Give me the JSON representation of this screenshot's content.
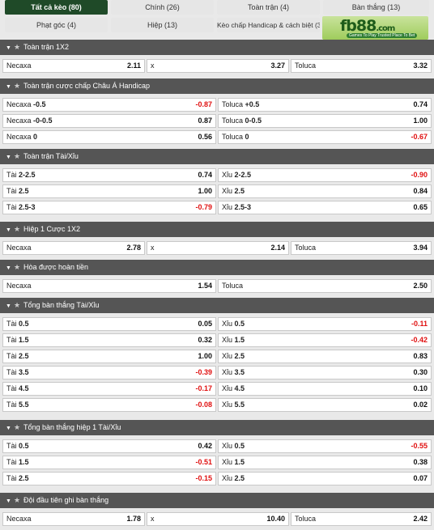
{
  "tabs": [
    {
      "label": "Tất cả kèo (80)",
      "active": true
    },
    {
      "label": "Chính (26)"
    },
    {
      "label": "Toàn trận (4)"
    },
    {
      "label": "Bàn thắng (13)"
    },
    {
      "label": "Phạt góc (4)"
    },
    {
      "label": "Hiệp (13)"
    },
    {
      "label": "Kèo chấp Handicap & cách biệt (3)"
    }
  ],
  "logo": {
    "brand": "fb88",
    "domain": ".com",
    "tagline": "Games To Play Trusted Place To Bet",
    "icon": "fb88-logo-icon"
  },
  "sections": [
    {
      "title": "Toàn trận 1X2",
      "cols": 3,
      "rows": [
        [
          {
            "label": "Necaxa",
            "odd": "2.11"
          },
          {
            "label": "x",
            "odd": "3.27"
          },
          {
            "label": "Toluca",
            "odd": "3.32"
          }
        ]
      ]
    },
    {
      "title": "Toàn trận cược chấp Châu Á Handicap",
      "cols": 2,
      "rows": [
        [
          {
            "label": "Necaxa",
            "line": "-0.5",
            "odd": "-0.87"
          },
          {
            "label": "Toluca",
            "line": "+0.5",
            "odd": "0.74"
          }
        ],
        [
          {
            "label": "Necaxa",
            "line": "-0-0.5",
            "odd": "0.87"
          },
          {
            "label": "Toluca",
            "line": "0-0.5",
            "odd": "1.00"
          }
        ],
        [
          {
            "label": "Necaxa",
            "line": "0",
            "odd": "0.56"
          },
          {
            "label": "Toluca",
            "line": "0",
            "odd": "-0.67"
          }
        ]
      ]
    },
    {
      "title": "Toàn trận Tài/Xỉu",
      "cols": 2,
      "rows": [
        [
          {
            "label": "Tài",
            "line": "2-2.5",
            "odd": "0.74"
          },
          {
            "label": "Xỉu",
            "line": "2-2.5",
            "odd": "-0.90"
          }
        ],
        [
          {
            "label": "Tài",
            "line": "2.5",
            "odd": "1.00"
          },
          {
            "label": "Xỉu",
            "line": "2.5",
            "odd": "0.84"
          }
        ],
        [
          {
            "label": "Tài",
            "line": "2.5-3",
            "odd": "-0.79"
          },
          {
            "label": "Xỉu",
            "line": "2.5-3",
            "odd": "0.65"
          }
        ]
      ]
    },
    {
      "title": "Hiệp 1 Cược 1X2",
      "cols": 3,
      "rows": [
        [
          {
            "label": "Necaxa",
            "odd": "2.78"
          },
          {
            "label": "x",
            "odd": "2.14"
          },
          {
            "label": "Toluca",
            "odd": "3.94"
          }
        ]
      ]
    },
    {
      "title": "Hòa được hoàn tiền",
      "cols": 2,
      "rows": [
        [
          {
            "label": "Necaxa",
            "odd": "1.54"
          },
          {
            "label": "Toluca",
            "odd": "2.50"
          }
        ]
      ]
    },
    {
      "title": "Tổng bàn thắng Tài/Xỉu",
      "cols": 2,
      "rows": [
        [
          {
            "label": "Tài",
            "line": "0.5",
            "odd": "0.05"
          },
          {
            "label": "Xỉu",
            "line": "0.5",
            "odd": "-0.11"
          }
        ],
        [
          {
            "label": "Tài",
            "line": "1.5",
            "odd": "0.32"
          },
          {
            "label": "Xỉu",
            "line": "1.5",
            "odd": "-0.42"
          }
        ],
        [
          {
            "label": "Tài",
            "line": "2.5",
            "odd": "1.00"
          },
          {
            "label": "Xỉu",
            "line": "2.5",
            "odd": "0.83"
          }
        ],
        [
          {
            "label": "Tài",
            "line": "3.5",
            "odd": "-0.39"
          },
          {
            "label": "Xỉu",
            "line": "3.5",
            "odd": "0.30"
          }
        ],
        [
          {
            "label": "Tài",
            "line": "4.5",
            "odd": "-0.17"
          },
          {
            "label": "Xỉu",
            "line": "4.5",
            "odd": "0.10"
          }
        ],
        [
          {
            "label": "Tài",
            "line": "5.5",
            "odd": "-0.08"
          },
          {
            "label": "Xỉu",
            "line": "5.5",
            "odd": "0.02"
          }
        ]
      ]
    },
    {
      "title": "Tổng bàn thắng hiệp 1 Tài/Xỉu",
      "cols": 2,
      "rows": [
        [
          {
            "label": "Tài",
            "line": "0.5",
            "odd": "0.42"
          },
          {
            "label": "Xỉu",
            "line": "0.5",
            "odd": "-0.55"
          }
        ],
        [
          {
            "label": "Tài",
            "line": "1.5",
            "odd": "-0.51"
          },
          {
            "label": "Xỉu",
            "line": "1.5",
            "odd": "0.38"
          }
        ],
        [
          {
            "label": "Tài",
            "line": "2.5",
            "odd": "-0.15"
          },
          {
            "label": "Xỉu",
            "line": "2.5",
            "odd": "0.07"
          }
        ]
      ]
    },
    {
      "title": "Đội đầu tiên ghi bàn thắng",
      "cols": 3,
      "rows": [
        [
          {
            "label": "Necaxa",
            "odd": "1.78"
          },
          {
            "label": "x",
            "odd": "10.40"
          },
          {
            "label": "Toluca",
            "odd": "2.42"
          }
        ]
      ]
    }
  ],
  "colors": {
    "header": "#555555",
    "active_tab": "#1f4a28",
    "negative": "#e01010"
  },
  "icons": {
    "collapse": "chevron-down-icon",
    "favorite": "star-icon"
  }
}
